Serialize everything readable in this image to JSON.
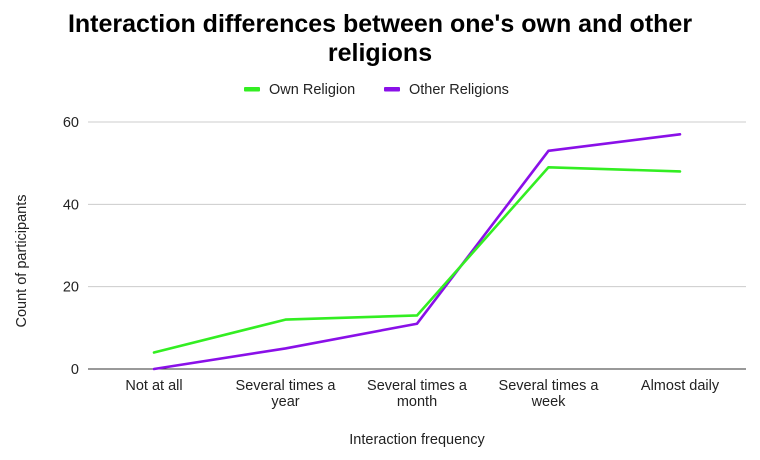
{
  "chart_data": {
    "type": "line",
    "title": "Interaction differences between one's own and other religions",
    "xlabel": "Interaction frequency",
    "ylabel": "Count of participants",
    "categories": [
      [
        "Not at all"
      ],
      [
        "Several times a",
        "year"
      ],
      [
        "Several times a",
        "month"
      ],
      [
        "Several times a",
        "week"
      ],
      [
        "Almost daily"
      ]
    ],
    "series": [
      {
        "name": "Own Religion",
        "color": "#33ee22",
        "values": [
          4,
          12,
          13,
          49,
          48
        ]
      },
      {
        "name": "Other Religions",
        "color": "#8a10e8",
        "values": [
          0,
          5,
          11,
          53,
          57
        ]
      }
    ],
    "ylim": [
      0,
      60
    ],
    "yticks": [
      0,
      20,
      40,
      60
    ],
    "grid": true,
    "legend_position": "top"
  }
}
